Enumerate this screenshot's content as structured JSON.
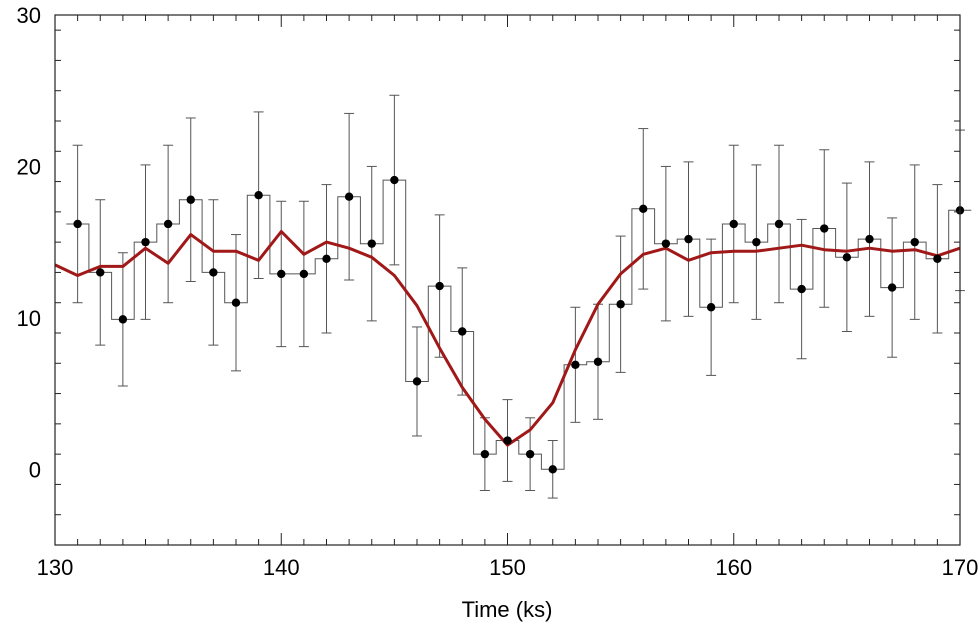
{
  "chart_data": {
    "type": "line",
    "title": "",
    "xlabel": "Time (ks)",
    "ylabel": "",
    "xlim": [
      130,
      170
    ],
    "ylim": [
      -5,
      30
    ],
    "x_ticks": [
      130,
      140,
      150,
      160,
      170
    ],
    "y_ticks": [
      0,
      10,
      20,
      30
    ],
    "grid": false,
    "colors": {
      "data": "#000000",
      "step": "#555555",
      "error_bar": "#555555",
      "model": "#a01818"
    },
    "series": [
      {
        "type": "scatter-errorbar-step",
        "x": [
          131,
          132,
          133,
          134,
          135,
          136,
          137,
          138,
          139,
          140,
          141,
          142,
          143,
          144,
          145,
          146,
          147,
          148,
          149,
          150,
          151,
          152,
          153,
          154,
          155,
          156,
          157,
          158,
          159,
          160,
          161,
          162,
          163,
          164,
          165,
          166,
          167,
          168,
          169,
          170
        ],
        "y": [
          16.2,
          13.0,
          9.9,
          15.0,
          16.2,
          17.8,
          13.0,
          11.0,
          18.1,
          12.9,
          12.9,
          13.9,
          18.0,
          14.9,
          19.1,
          5.8,
          12.1,
          9.1,
          1.0,
          1.9,
          1.0,
          0.0,
          6.9,
          7.1,
          10.9,
          17.2,
          14.9,
          15.2,
          10.7,
          16.2,
          15.0,
          16.2,
          11.9,
          15.9,
          14.0,
          15.2,
          12.0,
          15.0,
          13.9,
          17.1
        ],
        "yerr": [
          5.2,
          4.8,
          4.4,
          5.1,
          5.2,
          5.4,
          4.8,
          4.5,
          5.5,
          4.8,
          4.8,
          4.9,
          5.5,
          5.1,
          5.6,
          3.6,
          4.7,
          4.2,
          2.4,
          2.7,
          2.4,
          1.9,
          3.8,
          3.8,
          4.5,
          5.3,
          5.1,
          5.1,
          4.5,
          5.2,
          5.1,
          5.2,
          4.6,
          5.2,
          4.9,
          5.1,
          4.6,
          5.1,
          4.9,
          5.3
        ]
      },
      {
        "type": "line",
        "x": [
          130,
          131,
          132,
          133,
          134,
          135,
          136,
          137,
          138,
          139,
          140,
          141,
          142,
          143,
          144,
          145,
          146,
          147,
          148,
          149,
          150,
          151,
          152,
          153,
          154,
          155,
          156,
          157,
          158,
          159,
          160,
          161,
          162,
          163,
          164,
          165,
          166,
          167,
          168,
          169,
          170
        ],
        "y": [
          13.5,
          12.8,
          13.4,
          13.4,
          14.6,
          13.6,
          15.5,
          14.4,
          14.4,
          13.8,
          15.7,
          14.2,
          15.0,
          14.6,
          14.0,
          12.8,
          10.8,
          8.0,
          5.4,
          3.3,
          1.6,
          2.6,
          4.4,
          7.9,
          10.9,
          12.9,
          14.2,
          14.6,
          13.8,
          14.3,
          14.4,
          14.4,
          14.6,
          14.8,
          14.5,
          14.4,
          14.6,
          14.4,
          14.5,
          14.1,
          14.6
        ]
      }
    ]
  }
}
